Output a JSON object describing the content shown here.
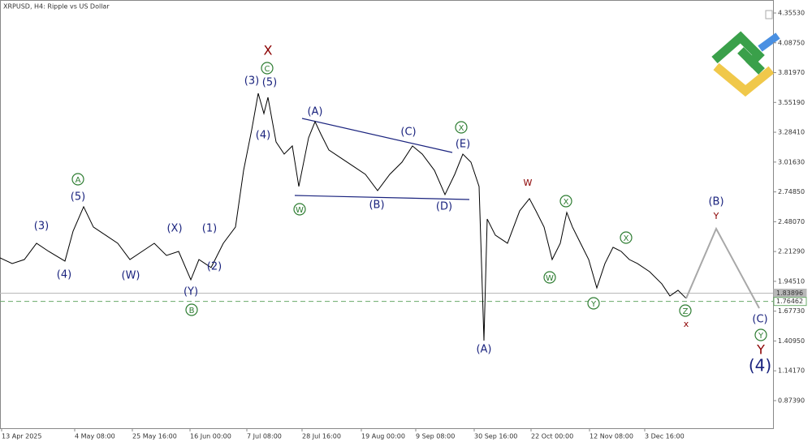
{
  "chart_data": {
    "type": "line",
    "title": "XRPUSD, H4:  Ripple vs US Dollar",
    "xlim": [
      0,
      952
    ],
    "ylim": [
      0.626,
      4.472
    ],
    "xticks": [
      {
        "value": 2,
        "label": "13 Apr 2025"
      },
      {
        "value": 92,
        "label": "4 May 08:00"
      },
      {
        "value": 163,
        "label": "25 May 16:00"
      },
      {
        "value": 234,
        "label": "16 Jun 00:00"
      },
      {
        "value": 304,
        "label": "7 Jul 08:00"
      },
      {
        "value": 372,
        "label": "28 Jul 16:00"
      },
      {
        "value": 445,
        "label": "19 Aug 00:00"
      },
      {
        "value": 512,
        "label": "9 Sep 08:00"
      },
      {
        "value": 584,
        "label": "30 Sep 16:00"
      },
      {
        "value": 654,
        "label": "22 Oct 00:00"
      },
      {
        "value": 726,
        "label": "12 Nov 08:00"
      },
      {
        "value": 794,
        "label": "3 Dec 16:00"
      }
    ],
    "yticks": [
      {
        "value": 4.3553,
        "label": "4.35530"
      },
      {
        "value": 4.0875,
        "label": "4.08750"
      },
      {
        "value": 3.8197,
        "label": "3.81970"
      },
      {
        "value": 3.5519,
        "label": "3.55190"
      },
      {
        "value": 3.2841,
        "label": "3.28410"
      },
      {
        "value": 3.0163,
        "label": "3.01630"
      },
      {
        "value": 2.7485,
        "label": "2.74850"
      },
      {
        "value": 2.4807,
        "label": "2.48070"
      },
      {
        "value": 2.2129,
        "label": "2.21290"
      },
      {
        "value": 1.9451,
        "label": "1.94510"
      },
      {
        "value": 1.6773,
        "label": "1.67730"
      },
      {
        "value": 1.4095,
        "label": "1.40950"
      },
      {
        "value": 1.1417,
        "label": "1.14170"
      },
      {
        "value": 0.8739,
        "label": "0.87390"
      }
    ],
    "levels": [
      {
        "value": 1.83896,
        "label": "1.83896",
        "color": "#b8b8b8"
      },
      {
        "value": 1.76462,
        "label": "1.76462",
        "color": "#6aaa6a"
      }
    ],
    "series": [
      {
        "color": "#000000",
        "x": [
          0,
          15,
          30,
          45,
          60,
          80,
          90,
          103,
          115,
          130,
          145,
          160,
          175,
          190,
          205,
          220,
          235,
          245,
          260,
          275,
          290,
          300,
          310,
          318,
          325,
          330,
          340,
          350,
          360,
          368,
          380,
          388,
          395,
          405,
          420,
          435,
          450,
          465,
          480,
          495,
          508,
          520,
          535,
          548,
          560,
          570,
          580,
          590,
          596,
          600,
          610,
          625,
          640,
          652,
          660,
          670,
          680,
          690,
          698,
          705,
          715,
          725,
          735,
          745,
          755,
          765,
          775,
          785,
          800,
          815,
          825,
          835,
          845
        ],
        "values": [
          2.156,
          2.105,
          2.141,
          2.287,
          2.214,
          2.127,
          2.396,
          2.615,
          2.433,
          2.36,
          2.287,
          2.141,
          2.214,
          2.287,
          2.178,
          2.214,
          1.959,
          2.141,
          2.069,
          2.287,
          2.433,
          2.942,
          3.307,
          3.634,
          3.452,
          3.598,
          3.197,
          3.088,
          3.161,
          2.797,
          3.234,
          3.379,
          3.27,
          3.125,
          3.052,
          2.979,
          2.906,
          2.76,
          2.906,
          3.015,
          3.161,
          3.088,
          2.942,
          2.724,
          2.906,
          3.088,
          3.015,
          2.797,
          1.413,
          2.505,
          2.36,
          2.287,
          2.578,
          2.688,
          2.578,
          2.433,
          2.141,
          2.287,
          2.564,
          2.433,
          2.287,
          2.141,
          1.886,
          2.105,
          2.251,
          2.214,
          2.141,
          2.105,
          2.032,
          1.923,
          1.814,
          1.865,
          1.792
        ]
      },
      {
        "color": "#a8a8a8",
        "x": [
          845,
          882,
          935
        ],
        "values": [
          1.792,
          2.418,
          1.704
        ]
      }
    ],
    "annotations": [
      "(3)",
      "(4)",
      "(5)",
      "A",
      "(W)",
      "(X)",
      "(Y)",
      "B",
      "(1)",
      "(2)",
      "(3)",
      "(5)",
      "C",
      "X",
      "(4)",
      "(A)",
      "W",
      "(B)",
      "(C)",
      "(D)",
      "(E)",
      "X",
      "(A)",
      "W",
      "X",
      "W",
      "Y",
      "X",
      "Z",
      "x",
      "(B)",
      "Y",
      "(C)",
      "Y",
      "Y",
      "(4)"
    ]
  }
}
